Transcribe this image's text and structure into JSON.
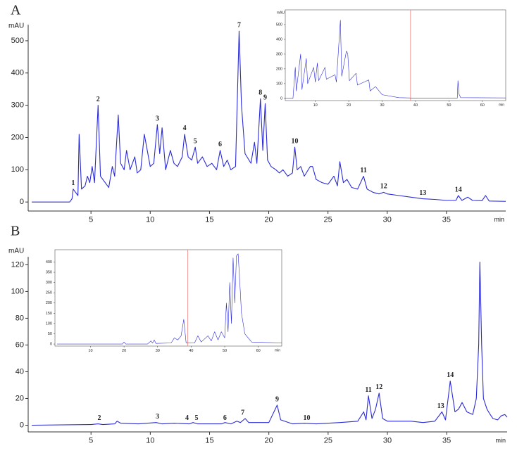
{
  "chart_data": [
    {
      "type": "line",
      "title": "A",
      "ylabel": "mAU",
      "xlabel": "min",
      "xlim": [
        -0.3,
        40
      ],
      "ylim": [
        -28,
        550
      ],
      "xticks": [
        5,
        10,
        15,
        20,
        25,
        30,
        35
      ],
      "yticks": [
        0,
        100,
        200,
        300,
        400,
        500
      ],
      "series": [
        {
          "color": "#2b2bd6",
          "x": [
            0,
            3.2,
            3.4,
            3.5,
            3.7,
            3.9,
            4.0,
            4.2,
            4.5,
            4.7,
            4.9,
            5.1,
            5.3,
            5.6,
            5.8,
            6.2,
            6.5,
            6.8,
            7.0,
            7.3,
            7.5,
            7.8,
            8.0,
            8.3,
            8.5,
            8.7,
            8.9,
            9.2,
            9.5,
            9.7,
            10.0,
            10.3,
            10.6,
            10.8,
            11.0,
            11.3,
            11.7,
            12.0,
            12.3,
            12.7,
            12.9,
            13.2,
            13.5,
            13.8,
            14.0,
            14.4,
            14.8,
            15.2,
            15.6,
            15.9,
            16.2,
            16.5,
            16.8,
            17.2,
            17.5,
            17.7,
            18.0,
            18.5,
            18.8,
            19.0,
            19.3,
            19.5,
            19.7,
            19.9,
            20.2,
            20.6,
            20.9,
            21.2,
            21.6,
            22.0,
            22.2,
            22.4,
            22.7,
            23.0,
            23.5,
            23.7,
            24.0,
            24.5,
            25.0,
            25.5,
            25.8,
            26.0,
            26.3,
            26.6,
            27.0,
            27.5,
            28.0,
            28.3,
            28.8,
            29.3,
            29.7,
            30.0,
            31.0,
            32.0,
            33.0,
            34.0,
            35.0,
            35.8,
            36.0,
            36.3,
            36.8,
            37.2,
            38.0,
            38.3,
            38.6,
            40.0
          ],
          "values": [
            0,
            0,
            10,
            40,
            30,
            20,
            210,
            40,
            50,
            80,
            60,
            110,
            60,
            300,
            80,
            60,
            45,
            110,
            80,
            270,
            120,
            100,
            160,
            100,
            120,
            140,
            90,
            100,
            210,
            170,
            110,
            120,
            240,
            150,
            230,
            100,
            160,
            120,
            110,
            140,
            210,
            140,
            130,
            170,
            120,
            140,
            110,
            120,
            100,
            160,
            110,
            130,
            100,
            110,
            530,
            300,
            150,
            120,
            185,
            120,
            320,
            160,
            305,
            130,
            110,
            100,
            90,
            100,
            80,
            90,
            170,
            100,
            110,
            80,
            110,
            110,
            70,
            60,
            55,
            80,
            50,
            125,
            60,
            70,
            45,
            40,
            80,
            40,
            30,
            25,
            30,
            25,
            20,
            15,
            10,
            8,
            5,
            5,
            20,
            5,
            15,
            5,
            4,
            20,
            3,
            2
          ]
        }
      ],
      "annotations": [
        {
          "label": "1",
          "x": 3.5,
          "y": 40
        },
        {
          "label": "2",
          "x": 5.6,
          "y": 300
        },
        {
          "label": "3",
          "x": 10.6,
          "y": 240
        },
        {
          "label": "4",
          "x": 12.9,
          "y": 210
        },
        {
          "label": "5",
          "x": 13.8,
          "y": 170
        },
        {
          "label": "6",
          "x": 15.9,
          "y": 160
        },
        {
          "label": "7",
          "x": 17.5,
          "y": 530
        },
        {
          "label": "8",
          "x": 19.3,
          "y": 320
        },
        {
          "label": "9",
          "x": 19.7,
          "y": 305
        },
        {
          "label": "10",
          "x": 22.2,
          "y": 170
        },
        {
          "label": "11",
          "x": 28.0,
          "y": 80
        },
        {
          "label": "12",
          "x": 29.7,
          "y": 30
        },
        {
          "label": "13",
          "x": 33.0,
          "y": 10
        },
        {
          "label": "14",
          "x": 36.0,
          "y": 20
        }
      ]
    },
    {
      "type": "line",
      "ylabel": "mAU",
      "xlabel": "min",
      "xlim": [
        1,
        67
      ],
      "ylim": [
        -15,
        600
      ],
      "xticks": [
        10,
        20,
        30,
        40,
        50,
        60
      ],
      "yticks": [
        0,
        100,
        200,
        300,
        400,
        500
      ],
      "marker": {
        "x": 38.5,
        "color": "#f08080"
      },
      "series": [
        {
          "color": "#2b2bd6",
          "x": [
            1,
            3.3,
            4,
            4.3,
            5.6,
            6,
            7.3,
            7.7,
            9.5,
            10,
            10.6,
            11,
            12.9,
            13.3,
            15.9,
            16.3,
            17.5,
            17.9,
            19.3,
            19.7,
            20.2,
            22.2,
            22.6,
            26,
            26.4,
            28,
            30,
            35,
            40,
            50,
            52.5,
            52.7,
            53,
            53.5,
            67
          ],
          "values": [
            0,
            0,
            210,
            50,
            300,
            60,
            270,
            100,
            210,
            110,
            240,
            120,
            210,
            130,
            160,
            110,
            530,
            150,
            320,
            305,
            120,
            170,
            90,
            125,
            50,
            80,
            25,
            5,
            2,
            2,
            2,
            120,
            30,
            5,
            3
          ]
        }
      ]
    },
    {
      "type": "line",
      "title": "B",
      "ylabel": "mAU",
      "xlabel": "min",
      "xlim": [
        -0.3,
        40.1
      ],
      "ylim": [
        -5,
        126
      ],
      "xticks": [
        5,
        10,
        15,
        20,
        25,
        30,
        35
      ],
      "yticks": [
        0,
        20,
        40,
        60,
        80,
        100,
        120
      ],
      "series": [
        {
          "color": "#2b2bd6",
          "x": [
            0,
            5,
            5.6,
            6,
            7,
            7.2,
            7.5,
            9,
            10.5,
            11,
            12,
            13.3,
            13.6,
            14,
            16,
            16.3,
            16.8,
            17.3,
            17.6,
            18,
            18.3,
            19,
            20,
            20.7,
            21,
            22,
            23,
            24,
            26,
            27.5,
            28,
            28.2,
            28.4,
            28.7,
            29,
            29.3,
            29.6,
            30,
            32,
            33,
            34,
            34.6,
            34.9,
            35.3,
            35.7,
            36,
            36.3,
            36.7,
            37.2,
            37.5,
            37.7,
            37.8,
            37.95,
            38.1,
            38.4,
            38.6,
            38.9,
            39.3,
            39.6,
            39.9,
            40.1
          ],
          "values": [
            0,
            0.5,
            1,
            0.5,
            1,
            3,
            1.5,
            1,
            2,
            1,
            1.5,
            1,
            2,
            1,
            1,
            2,
            1,
            3,
            2,
            5,
            2,
            2,
            2,
            15,
            4,
            1,
            1.5,
            1,
            2,
            3,
            10,
            4,
            22,
            5,
            12,
            24,
            5,
            3,
            3,
            2,
            3,
            10,
            4,
            33,
            10,
            12,
            17,
            10,
            8,
            20,
            60,
            122,
            60,
            20,
            12,
            9,
            5,
            4,
            7,
            8,
            6
          ]
        }
      ],
      "annotations": [
        {
          "label": "2",
          "x": 5.7,
          "y": 1
        },
        {
          "label": "3",
          "x": 10.6,
          "y": 2
        },
        {
          "label": "4",
          "x": 13.1,
          "y": 1
        },
        {
          "label": "5",
          "x": 13.9,
          "y": 1
        },
        {
          "label": "6",
          "x": 16.3,
          "y": 1
        },
        {
          "label": "7",
          "x": 17.8,
          "y": 5
        },
        {
          "label": "9",
          "x": 20.7,
          "y": 15
        },
        {
          "label": "10",
          "x": 23.2,
          "y": 1
        },
        {
          "label": "11",
          "x": 28.4,
          "y": 22
        },
        {
          "label": "12",
          "x": 29.3,
          "y": 24
        },
        {
          "label": "13",
          "x": 34.5,
          "y": 10
        },
        {
          "label": "14",
          "x": 35.3,
          "y": 33
        }
      ]
    },
    {
      "type": "line",
      "xlabel": "min",
      "xlim": [
        -0.6,
        67
      ],
      "ylim": [
        -10,
        460
      ],
      "xticks": [
        10,
        20,
        30,
        40,
        50,
        60
      ],
      "yticks": [
        0,
        50,
        100,
        150,
        200,
        250,
        300,
        350,
        400
      ],
      "marker": {
        "x": 39,
        "color": "#f08080"
      },
      "series": [
        {
          "color": "#2b2bd6",
          "x": [
            0,
            15,
            19.5,
            20,
            20.5,
            27,
            28,
            28.5,
            29,
            29.5,
            34,
            35,
            36,
            37,
            37.8,
            38.5,
            41,
            42,
            43,
            45,
            46,
            47,
            48,
            49,
            50,
            50.5,
            51,
            51.5,
            52,
            52.5,
            53,
            53.5,
            54,
            54.5,
            55,
            56,
            58,
            67
          ],
          "values": [
            0,
            0,
            0,
            10,
            0,
            0,
            15,
            5,
            20,
            3,
            5,
            30,
            20,
            40,
            120,
            5,
            5,
            40,
            10,
            40,
            15,
            60,
            20,
            60,
            30,
            200,
            60,
            300,
            100,
            420,
            200,
            430,
            440,
            300,
            150,
            50,
            10,
            5
          ]
        }
      ]
    }
  ]
}
